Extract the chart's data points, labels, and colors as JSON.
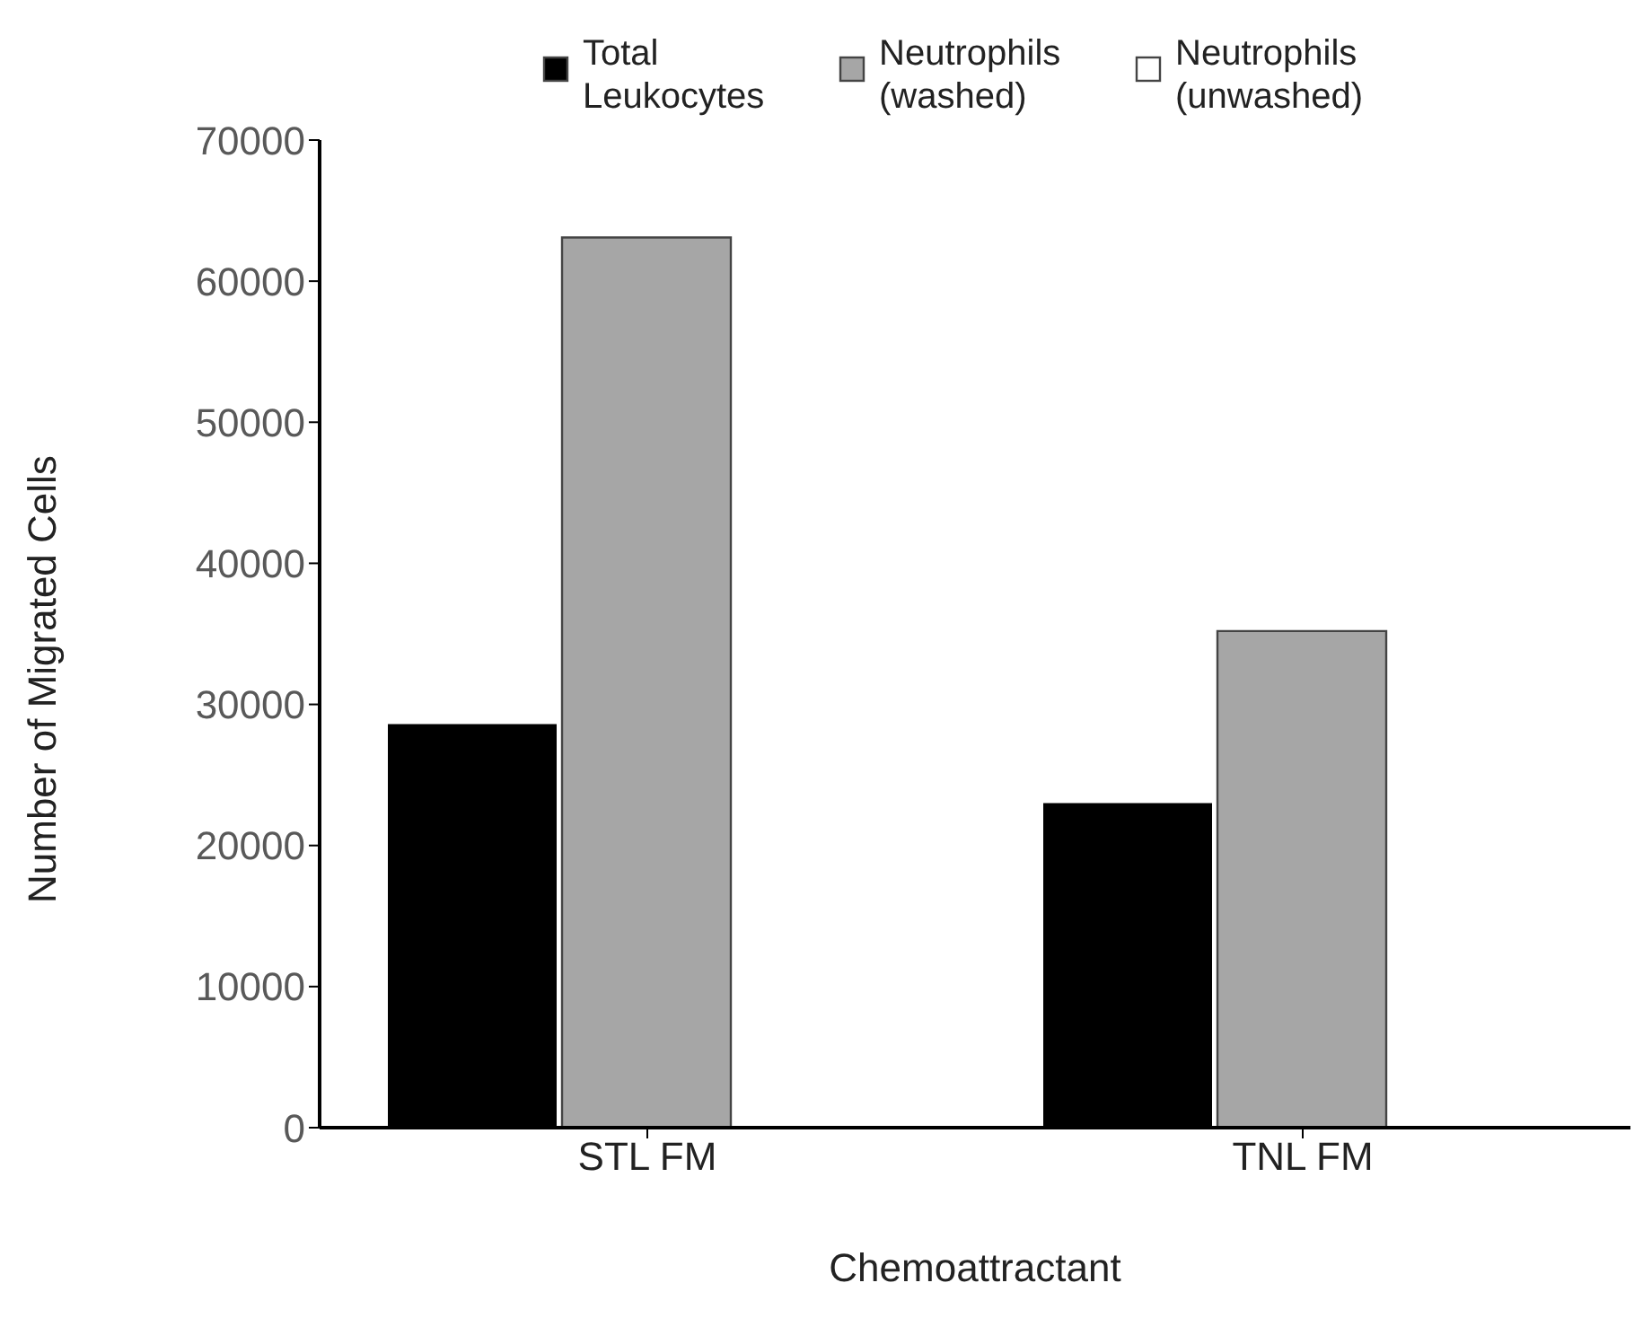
{
  "chart_data": {
    "type": "bar",
    "xlabel": "Chemoattractant",
    "ylabel": "Number of Migrated Cells",
    "categories": [
      "STL FM",
      "TNL FM"
    ],
    "series": [
      {
        "name": "Total Leukocytes",
        "color": "#000000",
        "values": [
          28600,
          23000
        ]
      },
      {
        "name": "Neutrophils (washed)",
        "color": "#a6a6a6",
        "values": [
          63100,
          35200
        ]
      },
      {
        "name": "Neutrophils (unwashed)",
        "color": "#ffffff",
        "values": [
          null,
          null
        ]
      }
    ],
    "ylim": [
      0,
      70000
    ],
    "yticks": [
      0,
      10000,
      20000,
      30000,
      40000,
      50000,
      60000,
      70000
    ],
    "grid": false,
    "legend": "top"
  }
}
